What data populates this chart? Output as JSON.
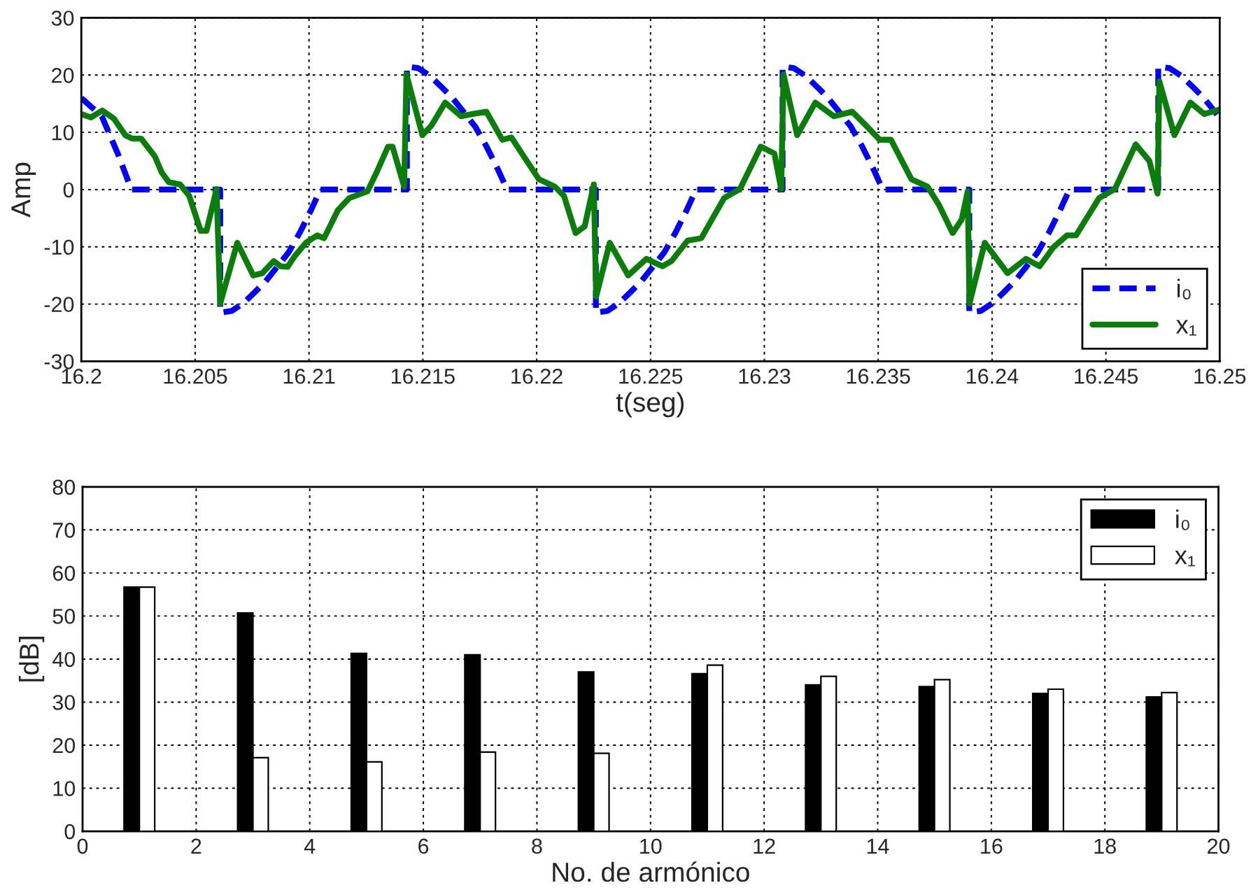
{
  "chart_data": [
    {
      "type": "line",
      "xlabel": "t(seg)",
      "ylabel": "Amp",
      "xlim": [
        16.2,
        16.25
      ],
      "xticks": [
        16.2,
        16.205,
        16.21,
        16.215,
        16.22,
        16.225,
        16.23,
        16.235,
        16.24,
        16.245,
        16.25
      ],
      "ylim": [
        -30,
        30
      ],
      "yticks": [
        -30,
        -20,
        -10,
        0,
        10,
        20,
        30
      ],
      "grid": true,
      "legend": "bottom right",
      "series": [
        {
          "name": "i₀",
          "color": "#0000ff",
          "line_style": "dashed",
          "x": [
            16.2,
            16.2009,
            16.2016,
            16.2022,
            16.2061,
            16.2061,
            16.2066,
            16.2071,
            16.2076,
            16.2081,
            16.2086,
            16.2091,
            16.2096,
            16.2101,
            16.2105,
            16.2143,
            16.2143,
            16.2148,
            16.2153,
            16.2158,
            16.2163,
            16.2168,
            16.2173,
            16.2178,
            16.2183,
            16.2187,
            16.2226,
            16.2226,
            16.2231,
            16.2236,
            16.2241,
            16.2246,
            16.2251,
            16.2256,
            16.2261,
            16.2266,
            16.227,
            16.2308,
            16.2308,
            16.2313,
            16.2318,
            16.2323,
            16.2328,
            16.2333,
            16.2338,
            16.2343,
            16.2348,
            16.2352,
            16.239,
            16.239,
            16.2395,
            16.24,
            16.2405,
            16.241,
            16.2415,
            16.242,
            16.2425,
            16.243,
            16.2434,
            16.2473,
            16.2473,
            16.2478,
            16.2483,
            16.2488,
            16.2493,
            16.2498,
            16.25
          ],
          "values": [
            16,
            12.8,
            6.3,
            0,
            0,
            -21.5,
            -21.2,
            -19.9,
            -18,
            -16,
            -13.5,
            -11,
            -7.5,
            -3.5,
            0,
            0,
            21.5,
            21.2,
            19.9,
            18,
            16,
            13.5,
            11,
            7.5,
            3.5,
            0,
            0,
            -21.5,
            -21.2,
            -19.9,
            -18,
            -16,
            -13.5,
            -11,
            -7.5,
            -3.5,
            0,
            0,
            21.5,
            21.2,
            19.9,
            18,
            16,
            13.5,
            11,
            7.5,
            3.5,
            0,
            0,
            -21.5,
            -21.2,
            -19.9,
            -18,
            -16,
            -13.5,
            -11,
            -7.5,
            -3.5,
            0,
            0,
            21.5,
            21.2,
            19.9,
            18,
            16,
            13.5,
            12.5
          ]
        },
        {
          "name": "x₁",
          "color": "#0a7d0a",
          "line_style": "solid",
          "x": [
            16.2,
            16.20042,
            16.20092,
            16.20143,
            16.20193,
            16.20223,
            16.20263,
            16.20323,
            16.20353,
            16.20384,
            16.20434,
            16.20474,
            16.20524,
            16.2055,
            16.20594,
            16.2061,
            16.20685,
            16.20755,
            16.20795,
            16.20845,
            16.20876,
            16.20906,
            16.20936,
            16.20986,
            16.21036,
            16.21066,
            16.21127,
            16.21177,
            16.21257,
            16.21297,
            16.21347,
            16.21367,
            16.21418,
            16.21428,
            16.21498,
            16.21538,
            16.21598,
            16.21668,
            16.21719,
            16.21779,
            16.21849,
            16.21889,
            16.2195,
            16.2201,
            16.2208,
            16.2212,
            16.22171,
            16.22211,
            16.22251,
            16.22261,
            16.22321,
            16.22402,
            16.22482,
            16.22552,
            16.22592,
            16.22663,
            16.22723,
            16.22823,
            16.22893,
            16.22984,
            16.23044,
            16.23074,
            16.23084,
            16.23144,
            16.23224,
            16.23305,
            16.23386,
            16.23446,
            16.23506,
            16.23556,
            16.23646,
            16.23717,
            16.23767,
            16.23827,
            16.23867,
            16.23893,
            16.23901,
            16.23968,
            16.24068,
            16.24149,
            16.24209,
            16.24269,
            16.24329,
            16.24369,
            16.2447,
            16.2454,
            16.24631,
            16.24691,
            16.24727,
            16.24735,
            16.24801,
            16.24871,
            16.24932,
            16.25
          ],
          "values": [
            13.2,
            12.6,
            13.8,
            12.4,
            9.5,
            8.9,
            8.9,
            5.8,
            3.0,
            1.3,
            0.9,
            -1.1,
            -7.2,
            -7.2,
            0.1,
            -19.9,
            -9.3,
            -15,
            -14.6,
            -12.5,
            -13.4,
            -13.5,
            -11.7,
            -9.3,
            -8,
            -8.5,
            -3.6,
            -1.5,
            -0.3,
            3.0,
            7.5,
            7.5,
            0.5,
            20.1,
            9.5,
            11.2,
            15.2,
            12.8,
            13.2,
            13.6,
            8.7,
            9.1,
            5.4,
            1.8,
            0.5,
            -1.1,
            -7.6,
            -6.4,
            0.9,
            -18.7,
            -9.3,
            -15,
            -12.1,
            -13.4,
            -12.5,
            -8.9,
            -8.5,
            -1.5,
            0.1,
            7.5,
            6.3,
            0.1,
            20.1,
            9.5,
            15.2,
            12.8,
            13.6,
            11.2,
            8.7,
            8.7,
            1.8,
            0.5,
            -2.7,
            -7.6,
            -5.2,
            -0.3,
            -19.9,
            -9.3,
            -14.6,
            -12.1,
            -13.4,
            -10.1,
            -8,
            -8,
            -1.5,
            0.1,
            7.9,
            5.0,
            -0.7,
            18.9,
            9.5,
            15.2,
            13.2,
            14.0
          ]
        }
      ]
    },
    {
      "type": "bar",
      "xlabel": "No. de armónico",
      "ylabel": "[dB]",
      "x": [
        1,
        3,
        5,
        7,
        9,
        11,
        13,
        15,
        17,
        19
      ],
      "xlim": [
        0,
        20
      ],
      "xticks": [
        0,
        2,
        4,
        6,
        8,
        10,
        12,
        14,
        16,
        18,
        20
      ],
      "ylim": [
        0,
        80
      ],
      "yticks": [
        0,
        10,
        20,
        30,
        40,
        50,
        60,
        70,
        80
      ],
      "grid": true,
      "legend": "top right",
      "series": [
        {
          "name": "i₀",
          "color": "#000000",
          "values": [
            56.7,
            50.7,
            41.3,
            41,
            37,
            36.6,
            34,
            33.6,
            32,
            31.2
          ]
        },
        {
          "name": "x₁",
          "color": "#ffffff",
          "values": [
            56.7,
            17.1,
            16.1,
            18.4,
            18.1,
            38.6,
            36,
            35.2,
            33,
            32.2
          ]
        }
      ]
    }
  ]
}
